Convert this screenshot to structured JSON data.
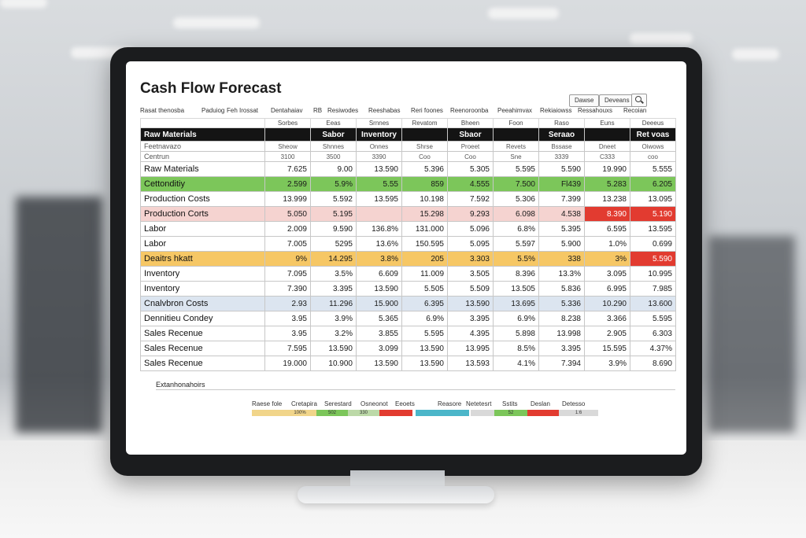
{
  "app": {
    "title": "Cash Flow Forecast",
    "toolbar": {
      "btn1": "Dawse",
      "btn2": "Deveans"
    }
  },
  "top_nav": [
    "Rasat thenosba",
    "Paduiog",
    "Feh Irossat",
    "Dentahaiav",
    "RB",
    "Resiwodes",
    "Reeshabas",
    "Reri foones",
    "Reenoroonba",
    "Peeahimvax",
    "Rekiaiowss",
    "Ressahouxs",
    "Recoian"
  ],
  "header_row1": [
    "Sorbes",
    "Eeas",
    "Srnnes",
    "Revatom",
    "Bheen",
    "Foon",
    "Raso",
    "Euns",
    "Deeeus"
  ],
  "header_row2": {
    "label": "Raw Materials",
    "cells": [
      "",
      "Sabor",
      "Inventory",
      "",
      "Sbaor",
      "",
      "Seraao",
      "",
      "Ret voas"
    ]
  },
  "header_row3": {
    "label": "Feetnavazo",
    "cells": [
      "Sheow",
      "Shnnes",
      "Onnes",
      "Shrse",
      "Proeet",
      "Revets",
      "Bssase",
      "Dneet",
      "Oiwows"
    ]
  },
  "header_row4": {
    "label": "Centrun",
    "cells": [
      "3100",
      "3500",
      "3390",
      "Coo",
      "Coo",
      "Sne",
      "3339",
      "C333",
      "coo"
    ]
  },
  "rows": [
    {
      "label": "Raw Materials",
      "style": "plain",
      "values": [
        "7.625",
        "9.00",
        "13.590",
        "5.396",
        "5.305",
        "5.595",
        "5.590",
        "19.990",
        "5.555"
      ]
    },
    {
      "label": "Cettonditiy",
      "style": "green",
      "values": [
        "2.599",
        "5.9%",
        "5.55",
        "859",
        "4.555",
        "7.500",
        "Fl439",
        "5.283",
        "6.205"
      ]
    },
    {
      "label": "Production Costs",
      "style": "plain",
      "values": [
        "13.999",
        "5.592",
        "13.595",
        "10.198",
        "7.592",
        "5.306",
        "7.399",
        "13.238",
        "13.095"
      ]
    },
    {
      "label": "Production Corts",
      "style": "pink",
      "values": [
        "5.050",
        "5.195",
        "",
        "15.298",
        "9.293",
        "6.098",
        "4.538",
        "8.390",
        "5.190"
      ],
      "red_cols": [
        7,
        8
      ]
    },
    {
      "label": "Labor",
      "style": "plain",
      "values": [
        "2.009",
        "9.590",
        "136.8%",
        "131.000",
        "5.096",
        "6.8%",
        "5.395",
        "6.595",
        "13.595"
      ]
    },
    {
      "label": "Labor",
      "style": "plain",
      "values": [
        "7.005",
        "5295",
        "13.6%",
        "150.595",
        "5.095",
        "5.597",
        "5.900",
        "1.0%",
        "0.699"
      ]
    },
    {
      "label": "Deaitrs hkatt",
      "style": "orange",
      "values": [
        "9%",
        "14.295",
        "3.8%",
        "205",
        "3.303",
        "5.5%",
        "338",
        "3%",
        "5.590"
      ],
      "red_cols": [
        8
      ]
    },
    {
      "label": "Inventory",
      "style": "plain",
      "values": [
        "7.095",
        "3.5%",
        "6.609",
        "11.009",
        "3.505",
        "8.396",
        "13.3%",
        "3.095",
        "10.995"
      ]
    },
    {
      "label": "Inventory",
      "style": "plain",
      "values": [
        "7.390",
        "3.395",
        "13.590",
        "5.505",
        "5.509",
        "13.505",
        "5.836",
        "6.995",
        "7.985"
      ]
    },
    {
      "label": "Cnalvbron Costs",
      "style": "blue",
      "values": [
        "2.93",
        "11.296",
        "15.900",
        "6.395",
        "13.590",
        "13.695",
        "5.336",
        "10.290",
        "13.600"
      ]
    },
    {
      "label": "Dennitieu Condey",
      "style": "plain",
      "values": [
        "3.95",
        "3.9%",
        "5.365",
        "6.9%",
        "3.395",
        "6.9%",
        "8.238",
        "3.366",
        "5.595"
      ]
    },
    {
      "label": "Sales Recenue",
      "style": "plain",
      "values": [
        "3.95",
        "3.2%",
        "3.855",
        "5.595",
        "4.395",
        "5.898",
        "13.998",
        "2.905",
        "6.303"
      ]
    },
    {
      "label": "Sales Recenue",
      "style": "plain",
      "values": [
        "7.595",
        "13.590",
        "3.099",
        "13.590",
        "13.995",
        "8.5%",
        "3.395",
        "15.595",
        "4.37%"
      ]
    },
    {
      "label": "Sales Recenue",
      "style": "plain",
      "values": [
        "19.000",
        "10.900",
        "13.590",
        "13.590",
        "13.593",
        "4.1%",
        "7.394",
        "3.9%",
        "8.690"
      ]
    }
  ],
  "footnote": "Extanhonahoirs",
  "legend": [
    {
      "label": "Raese fole",
      "value": "",
      "color": "#f1d58a"
    },
    {
      "label": "Cretapira",
      "value": "100%",
      "color": "#f1d58a"
    },
    {
      "label": "Serestard",
      "value": "502",
      "color": "#7cc65a"
    },
    {
      "label": "Osneonot",
      "value": "330",
      "color": "#bcd9a8"
    },
    {
      "label": "Eeoets",
      "value": "",
      "color": "#e23b30"
    },
    {
      "label": "Reasore",
      "value": "",
      "color": "#4bb6c9"
    },
    {
      "label": "Netetesrt",
      "value": "",
      "color": "#d9d9d9"
    },
    {
      "label": "Sstits",
      "value": "52",
      "color": "#7cc65a"
    },
    {
      "label": "Deslan",
      "value": "",
      "color": "#e23b30"
    },
    {
      "label": "Detesso",
      "value": "1:6",
      "color": "#d9d9d9"
    }
  ]
}
